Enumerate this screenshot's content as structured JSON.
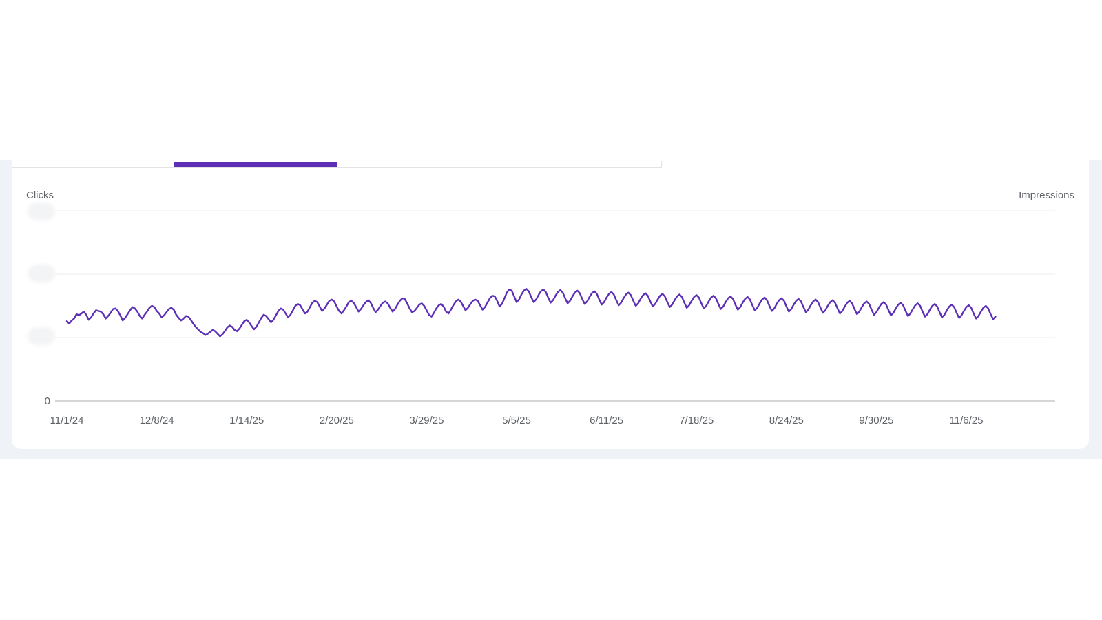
{
  "colors": {
    "accent": "#5c2fb6",
    "grid": "#ececec",
    "axis": "#c8c8c8",
    "text": "#5f6368",
    "band": "#eff2f7"
  },
  "tabs": {
    "count": 4,
    "selected_index": 1
  },
  "chart_data": {
    "type": "line",
    "left_axis_title": "Clicks",
    "right_axis_title": "Impressions",
    "ylim": [
      0,
      3
    ],
    "y_ticks": [
      {
        "value": 0,
        "label": "0"
      },
      {
        "value": 1,
        "label": ""
      },
      {
        "value": 2,
        "label": ""
      },
      {
        "value": 3,
        "label": ""
      }
    ],
    "x_ticks": [
      {
        "index": 0,
        "label": "11/1/24"
      },
      {
        "index": 37,
        "label": "12/8/24"
      },
      {
        "index": 74,
        "label": "1/14/25"
      },
      {
        "index": 111,
        "label": "2/20/25"
      },
      {
        "index": 148,
        "label": "3/29/25"
      },
      {
        "index": 185,
        "label": "5/5/25"
      },
      {
        "index": 222,
        "label": "6/11/25"
      },
      {
        "index": 259,
        "label": "7/18/25"
      },
      {
        "index": 296,
        "label": "8/24/25"
      },
      {
        "index": 333,
        "label": "9/30/25"
      },
      {
        "index": 370,
        "label": "11/6/25"
      }
    ],
    "x_range": [
      0,
      402
    ],
    "series": [
      {
        "name": "Clicks",
        "color": "#5c2fb6",
        "values": [
          1.26,
          1.22,
          1.27,
          1.3,
          1.37,
          1.35,
          1.38,
          1.41,
          1.36,
          1.28,
          1.32,
          1.38,
          1.43,
          1.42,
          1.41,
          1.37,
          1.3,
          1.34,
          1.39,
          1.45,
          1.46,
          1.42,
          1.35,
          1.27,
          1.31,
          1.37,
          1.43,
          1.48,
          1.46,
          1.41,
          1.34,
          1.3,
          1.36,
          1.41,
          1.47,
          1.5,
          1.48,
          1.42,
          1.38,
          1.32,
          1.35,
          1.4,
          1.45,
          1.47,
          1.44,
          1.36,
          1.31,
          1.27,
          1.3,
          1.34,
          1.33,
          1.28,
          1.22,
          1.17,
          1.13,
          1.09,
          1.07,
          1.04,
          1.06,
          1.09,
          1.12,
          1.1,
          1.06,
          1.02,
          1.05,
          1.1,
          1.16,
          1.19,
          1.17,
          1.12,
          1.1,
          1.14,
          1.2,
          1.26,
          1.28,
          1.24,
          1.18,
          1.13,
          1.17,
          1.24,
          1.31,
          1.36,
          1.34,
          1.29,
          1.24,
          1.28,
          1.35,
          1.42,
          1.46,
          1.44,
          1.38,
          1.32,
          1.36,
          1.43,
          1.5,
          1.53,
          1.51,
          1.44,
          1.38,
          1.41,
          1.48,
          1.55,
          1.58,
          1.56,
          1.49,
          1.42,
          1.46,
          1.52,
          1.58,
          1.6,
          1.57,
          1.49,
          1.42,
          1.38,
          1.43,
          1.49,
          1.56,
          1.58,
          1.55,
          1.48,
          1.41,
          1.45,
          1.51,
          1.56,
          1.59,
          1.55,
          1.47,
          1.4,
          1.44,
          1.5,
          1.55,
          1.57,
          1.54,
          1.47,
          1.41,
          1.45,
          1.52,
          1.58,
          1.62,
          1.61,
          1.54,
          1.46,
          1.4,
          1.42,
          1.47,
          1.52,
          1.54,
          1.5,
          1.43,
          1.36,
          1.33,
          1.39,
          1.46,
          1.51,
          1.53,
          1.49,
          1.41,
          1.38,
          1.44,
          1.51,
          1.57,
          1.6,
          1.57,
          1.5,
          1.43,
          1.47,
          1.53,
          1.58,
          1.6,
          1.58,
          1.51,
          1.44,
          1.48,
          1.55,
          1.62,
          1.66,
          1.65,
          1.58,
          1.49,
          1.53,
          1.62,
          1.71,
          1.76,
          1.74,
          1.65,
          1.56,
          1.6,
          1.68,
          1.74,
          1.77,
          1.73,
          1.64,
          1.56,
          1.6,
          1.67,
          1.73,
          1.76,
          1.72,
          1.63,
          1.55,
          1.59,
          1.66,
          1.72,
          1.75,
          1.71,
          1.62,
          1.54,
          1.58,
          1.65,
          1.71,
          1.74,
          1.7,
          1.61,
          1.53,
          1.57,
          1.64,
          1.7,
          1.73,
          1.69,
          1.6,
          1.52,
          1.56,
          1.63,
          1.69,
          1.72,
          1.68,
          1.59,
          1.51,
          1.55,
          1.62,
          1.68,
          1.71,
          1.67,
          1.58,
          1.5,
          1.54,
          1.61,
          1.67,
          1.7,
          1.66,
          1.57,
          1.49,
          1.53,
          1.6,
          1.66,
          1.69,
          1.65,
          1.56,
          1.48,
          1.52,
          1.59,
          1.65,
          1.68,
          1.64,
          1.55,
          1.47,
          1.51,
          1.58,
          1.64,
          1.67,
          1.63,
          1.54,
          1.46,
          1.5,
          1.57,
          1.63,
          1.66,
          1.62,
          1.53,
          1.45,
          1.49,
          1.56,
          1.62,
          1.65,
          1.61,
          1.52,
          1.44,
          1.48,
          1.55,
          1.61,
          1.64,
          1.6,
          1.51,
          1.43,
          1.47,
          1.54,
          1.6,
          1.63,
          1.59,
          1.5,
          1.42,
          1.46,
          1.53,
          1.59,
          1.62,
          1.58,
          1.49,
          1.41,
          1.45,
          1.52,
          1.58,
          1.61,
          1.57,
          1.48,
          1.4,
          1.44,
          1.51,
          1.57,
          1.6,
          1.56,
          1.47,
          1.39,
          1.43,
          1.5,
          1.56,
          1.59,
          1.55,
          1.46,
          1.38,
          1.42,
          1.49,
          1.55,
          1.58,
          1.54,
          1.45,
          1.37,
          1.41,
          1.48,
          1.54,
          1.57,
          1.53,
          1.44,
          1.36,
          1.4,
          1.47,
          1.53,
          1.56,
          1.52,
          1.43,
          1.35,
          1.39,
          1.46,
          1.52,
          1.55,
          1.51,
          1.42,
          1.34,
          1.38,
          1.45,
          1.51,
          1.54,
          1.5,
          1.41,
          1.33,
          1.37,
          1.44,
          1.5,
          1.53,
          1.49,
          1.4,
          1.32,
          1.36,
          1.43,
          1.49,
          1.52,
          1.48,
          1.39,
          1.31,
          1.35,
          1.42,
          1.48,
          1.51,
          1.47,
          1.38,
          1.3,
          1.34,
          1.41,
          1.47,
          1.5,
          1.46,
          1.37,
          1.29,
          1.33
        ]
      }
    ]
  }
}
